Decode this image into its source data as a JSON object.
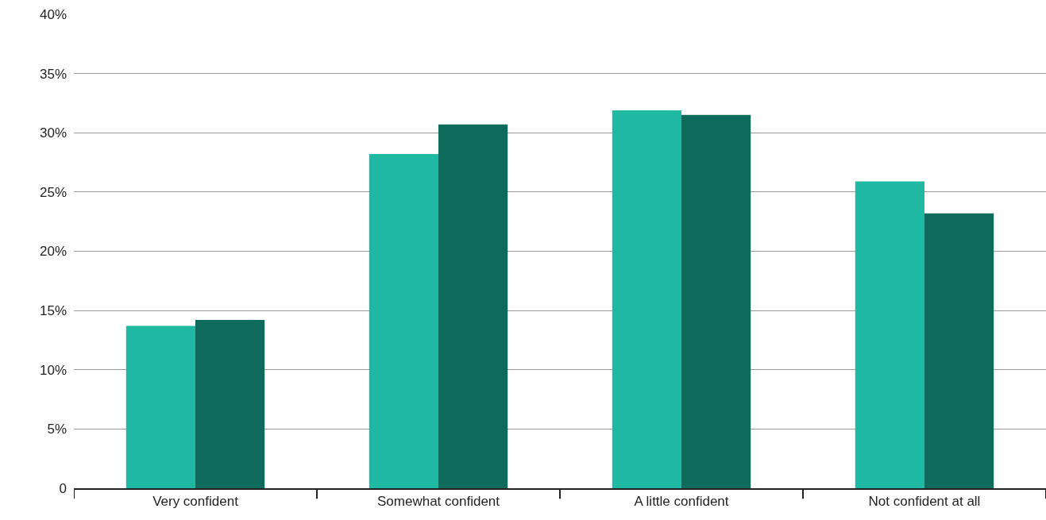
{
  "chart_data": {
    "type": "bar",
    "categories": [
      "Very confident",
      "Somewhat confident",
      "A little confident",
      "Not confident at all"
    ],
    "series": [
      {
        "color": "#1fb8a3",
        "values": [
          13.7,
          28.2,
          31.9,
          25.9
        ]
      },
      {
        "color": "#0e6b5c",
        "values": [
          14.2,
          30.7,
          31.5,
          23.2
        ]
      }
    ],
    "ylim": [
      0,
      40
    ],
    "yticks": [
      0,
      {
        "value": 5,
        "label": "5%"
      },
      {
        "value": 10,
        "label": "10%"
      },
      {
        "value": 15,
        "label": "15%"
      },
      {
        "value": 20,
        "label": "20%"
      },
      {
        "value": 25,
        "label": "25%"
      },
      {
        "value": 30,
        "label": "30%"
      },
      {
        "value": 35,
        "label": "35%"
      },
      {
        "value": 40,
        "label": "40%"
      }
    ],
    "grid": "y"
  }
}
